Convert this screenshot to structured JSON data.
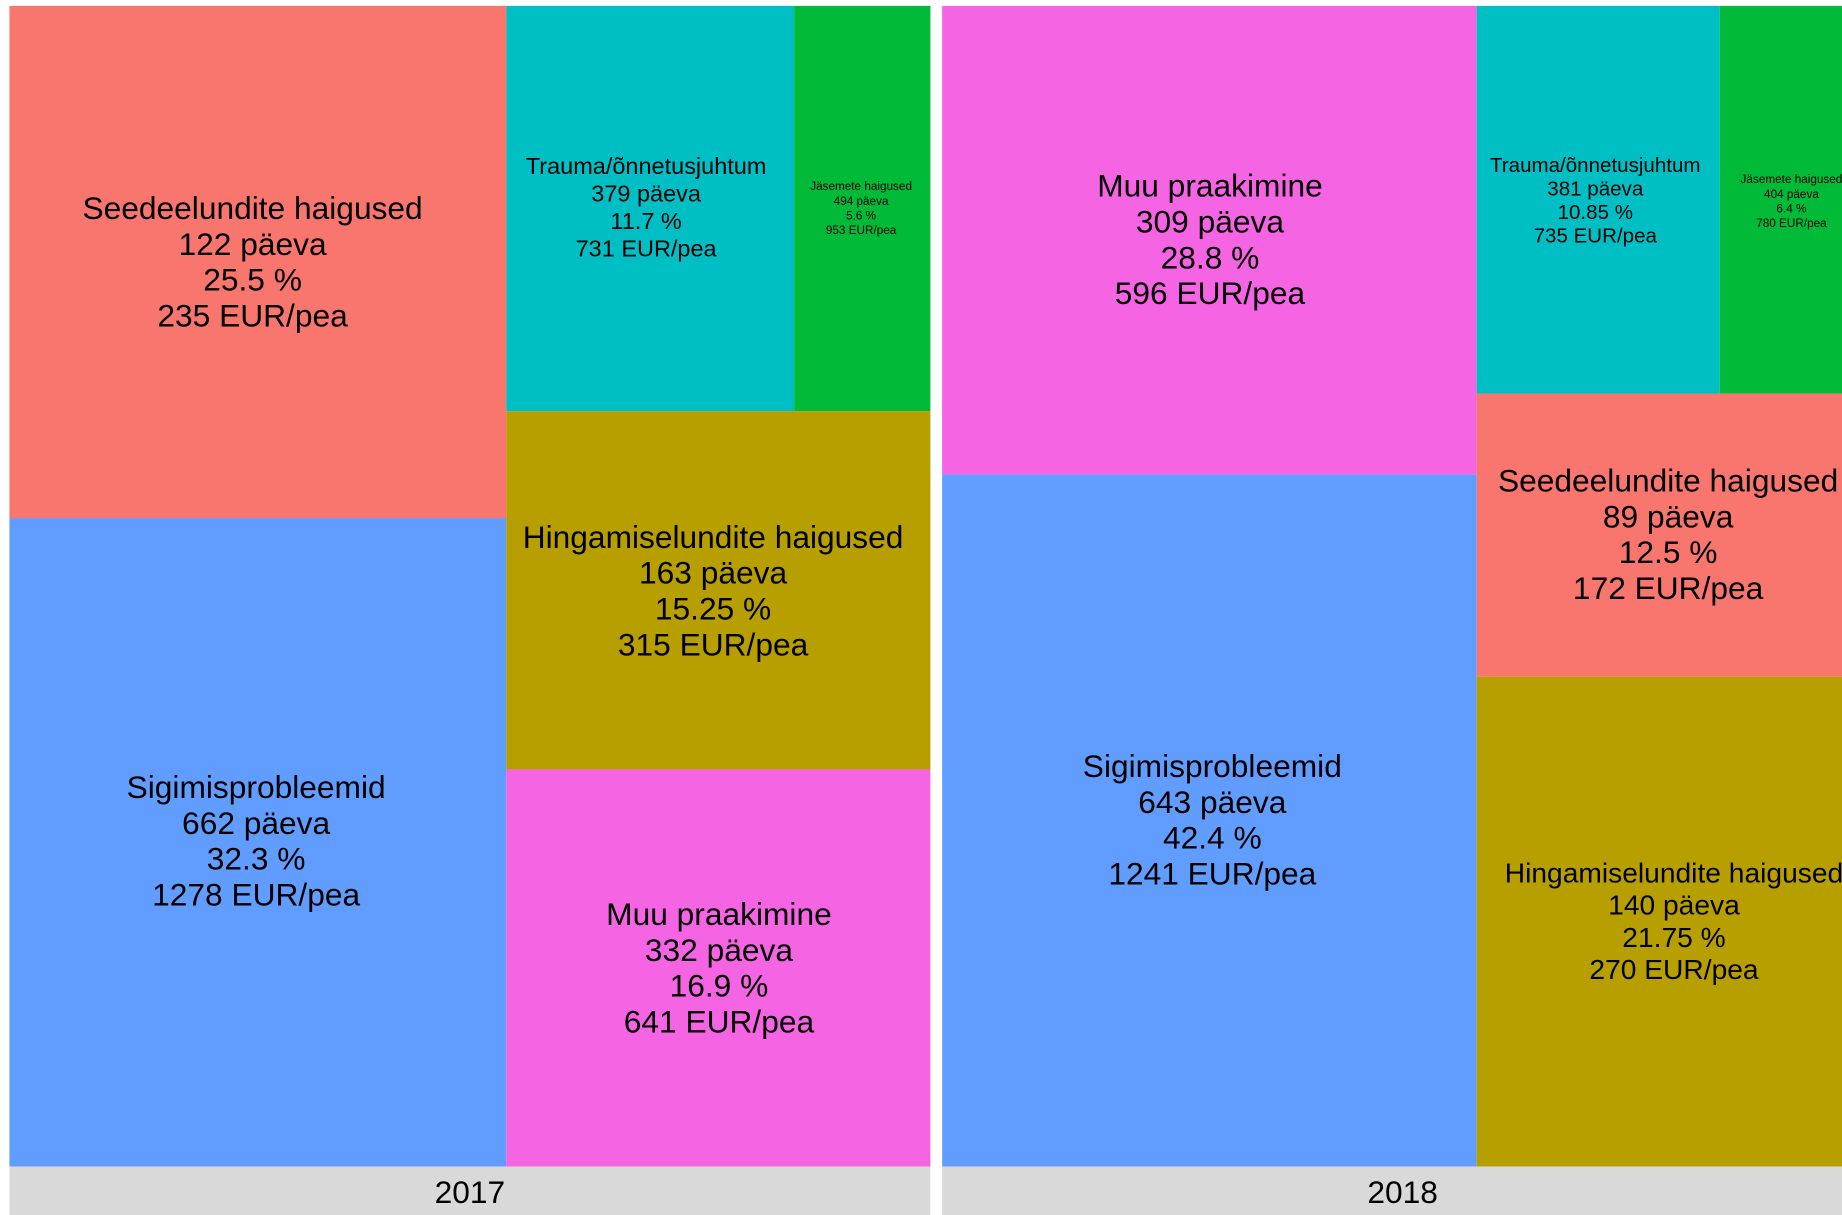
{
  "chart_data": [
    {
      "type": "treemap",
      "title": "2017",
      "tiles": [
        {
          "name": "Seedeelundite haigused",
          "color": "#f8766d",
          "days": 122,
          "days_label": "122 päeva",
          "percent": 25.5,
          "percent_label": "25.5 %",
          "cost": 235,
          "cost_label": "235 EUR/pea"
        },
        {
          "name": "Sigimisprobleemid",
          "color": "#619cff",
          "days": 662,
          "days_label": "662 päeva",
          "percent": 32.3,
          "percent_label": "32.3 %",
          "cost": 1278,
          "cost_label": "1278 EUR/pea"
        },
        {
          "name": "Trauma/õnnetusjuhtum",
          "color": "#00bfc4",
          "days": 379,
          "days_label": "379 päeva",
          "percent": 11.7,
          "percent_label": "11.7 %",
          "cost": 731,
          "cost_label": "731 EUR/pea"
        },
        {
          "name": "Jäsemete haigused",
          "color": "#00ba38",
          "days": 494,
          "days_label": "494 päeva",
          "percent": 5.6,
          "percent_label": "5.6 %",
          "cost": 953,
          "cost_label": "953 EUR/pea"
        },
        {
          "name": "Hingamiselundite haigused",
          "color": "#b79f00",
          "days": 163,
          "days_label": "163 päeva",
          "percent": 15.25,
          "percent_label": "15.25 %",
          "cost": 315,
          "cost_label": "315 EUR/pea"
        },
        {
          "name": "Muu praakimine",
          "color": "#f564e3",
          "days": 332,
          "days_label": "332 päeva",
          "percent": 16.9,
          "percent_label": "16.9 %",
          "cost": 641,
          "cost_label": "641 EUR/pea"
        }
      ]
    },
    {
      "type": "treemap",
      "title": "2018",
      "tiles": [
        {
          "name": "Muu praakimine",
          "color": "#f564e3",
          "days": 309,
          "days_label": "309 päeva",
          "percent": 28.8,
          "percent_label": "28.8 %",
          "cost": 596,
          "cost_label": "596 EUR/pea"
        },
        {
          "name": "Sigimisprobleemid",
          "color": "#619cff",
          "days": 643,
          "days_label": "643 päeva",
          "percent": 42.4,
          "percent_label": "42.4 %",
          "cost": 1241,
          "cost_label": "1241 EUR/pea"
        },
        {
          "name": "Trauma/õnnetusjuhtum",
          "color": "#00bfc4",
          "days": 381,
          "days_label": "381 päeva",
          "percent": 10.85,
          "percent_label": "10.85 %",
          "cost": 735,
          "cost_label": "735 EUR/pea"
        },
        {
          "name": "Jäsemete haigused",
          "color": "#00ba38",
          "days": 404,
          "days_label": "404 päeva",
          "percent": 6.4,
          "percent_label": "6.4 %",
          "cost": 780,
          "cost_label": "780 EUR/pea"
        },
        {
          "name": "Seedeelundite haigused",
          "color": "#f8766d",
          "days": 89,
          "days_label": "89 päeva",
          "percent": 12.5,
          "percent_label": "12.5 %",
          "cost": 172,
          "cost_label": "172 EUR/pea"
        },
        {
          "name": "Hingamiselundite haigused",
          "color": "#b79f00",
          "days": 140,
          "days_label": "140 päeva",
          "percent": 21.75,
          "percent_label": "21.75 %",
          "cost": 270,
          "cost_label": "270 EUR/pea"
        }
      ]
    }
  ]
}
